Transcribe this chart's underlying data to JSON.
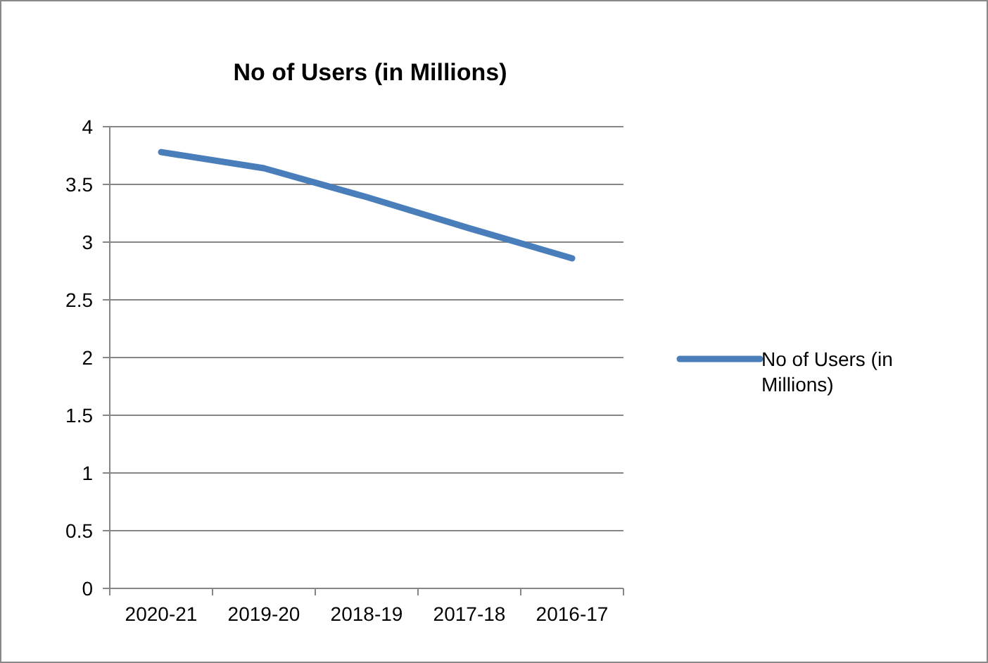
{
  "chart_data": {
    "type": "line",
    "title": "No of Users (in Millions)",
    "categories": [
      "2020-21",
      "2019-20",
      "2018-19",
      "2017-18",
      "2016-17"
    ],
    "series": [
      {
        "name": "No of Users (in Millions)",
        "color": "#4a7ebb",
        "values": [
          3.78,
          3.64,
          3.39,
          3.12,
          2.86
        ]
      }
    ],
    "ylim": [
      0,
      4
    ],
    "yticks": [
      0,
      0.5,
      1,
      1.5,
      2,
      2.5,
      3,
      3.5,
      4
    ],
    "grid": "y",
    "legend": "right",
    "marker": "none",
    "line_style": "solid"
  }
}
